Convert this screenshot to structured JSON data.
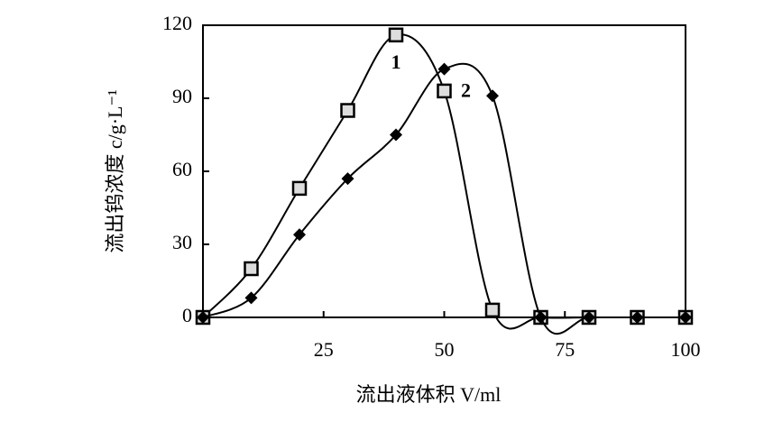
{
  "chart_data": {
    "type": "line",
    "x_label": "流出液体积 V/ml",
    "y_label": "流出钨浓度 c/g·L⁻¹",
    "x": [
      0,
      10,
      20,
      30,
      40,
      50,
      60,
      70,
      80,
      90,
      100
    ],
    "series": [
      {
        "name": "1",
        "color": "#000000",
        "marker": "square",
        "values": [
          0,
          20,
          53,
          85,
          116,
          93,
          3,
          0,
          0,
          0,
          0
        ]
      },
      {
        "name": "2",
        "color": "#000000",
        "marker": "diamond",
        "values": [
          0,
          8,
          34,
          57,
          75,
          102,
          91,
          0,
          0,
          0,
          0
        ]
      }
    ],
    "xlim": [
      0,
      100
    ],
    "xticks": [
      25,
      50,
      75,
      100
    ],
    "ylim": [
      0,
      120
    ],
    "yticks": [
      0,
      30,
      60,
      90,
      120
    ]
  }
}
